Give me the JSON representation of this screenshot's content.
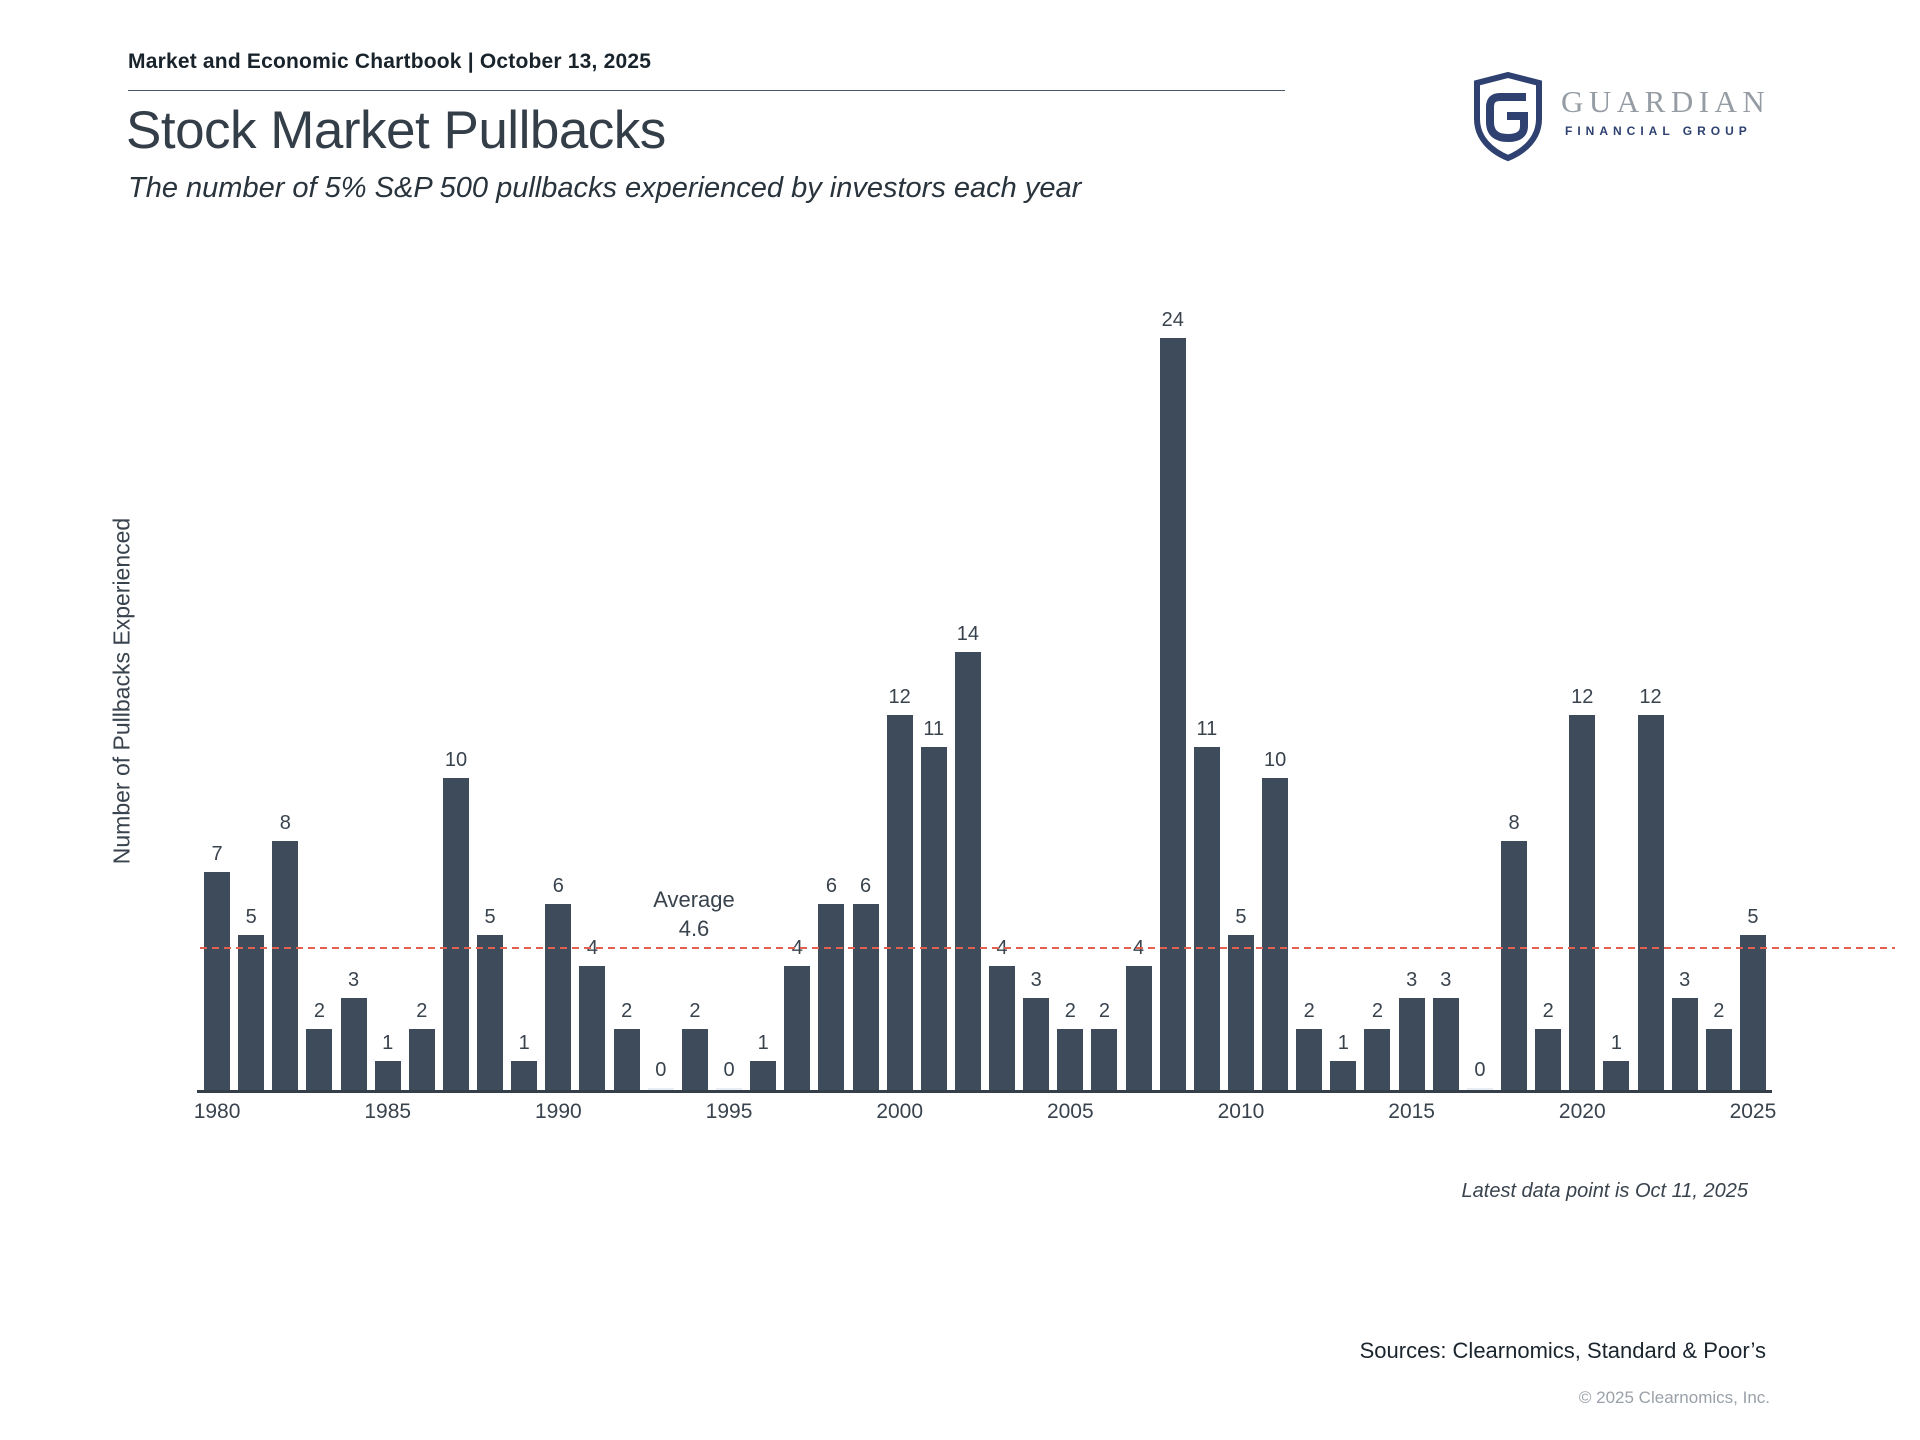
{
  "header": {
    "chartbook_line": "Market and Economic Chartbook | October 13, 2025"
  },
  "logo": {
    "monogram": "G",
    "wordmark": "GUARDIAN",
    "subtext": "FINANCIAL GROUP",
    "brand_navy": "#2e4170",
    "brand_gray": "#959ca4"
  },
  "title": "Stock Market Pullbacks",
  "subtitle": "The number of 5% S&P 500 pullbacks experienced by investors each year",
  "chart_data": {
    "type": "bar",
    "title": "Stock Market Pullbacks",
    "xlabel": "",
    "ylabel": "Number of Pullbacks Experienced",
    "categories": [
      1980,
      1981,
      1982,
      1983,
      1984,
      1985,
      1986,
      1987,
      1988,
      1989,
      1990,
      1991,
      1992,
      1993,
      1994,
      1995,
      1996,
      1997,
      1998,
      1999,
      2000,
      2001,
      2002,
      2003,
      2004,
      2005,
      2006,
      2007,
      2008,
      2009,
      2010,
      2011,
      2012,
      2013,
      2014,
      2015,
      2016,
      2017,
      2018,
      2019,
      2020,
      2021,
      2022,
      2023,
      2024,
      2025
    ],
    "values": [
      7,
      5,
      8,
      2,
      3,
      1,
      2,
      10,
      5,
      1,
      6,
      4,
      2,
      0,
      2,
      0,
      1,
      4,
      6,
      6,
      12,
      11,
      14,
      4,
      3,
      2,
      2,
      4,
      24,
      11,
      5,
      10,
      2,
      1,
      2,
      3,
      3,
      0,
      8,
      2,
      12,
      1,
      12,
      3,
      2,
      5
    ],
    "x_tick_years": [
      1980,
      1985,
      1990,
      1995,
      2000,
      2005,
      2010,
      2015,
      2020,
      2025
    ],
    "average": {
      "label": "Average",
      "display_value": "4.6",
      "numeric": 4.6
    },
    "ylim": [
      0,
      25
    ],
    "bar_color": "#3d4b5a",
    "zero_bar_color": "#e7edf2",
    "avg_line_color": "#e4604e",
    "grid": false,
    "legend": "none",
    "value_labels_shown": true
  },
  "annotations": {
    "latest_note": "Latest data point is Oct 11, 2025"
  },
  "footer": {
    "sources": "Sources: Clearnomics, Standard & Poor’s",
    "copyright": "© 2025 Clearnomics, Inc."
  }
}
